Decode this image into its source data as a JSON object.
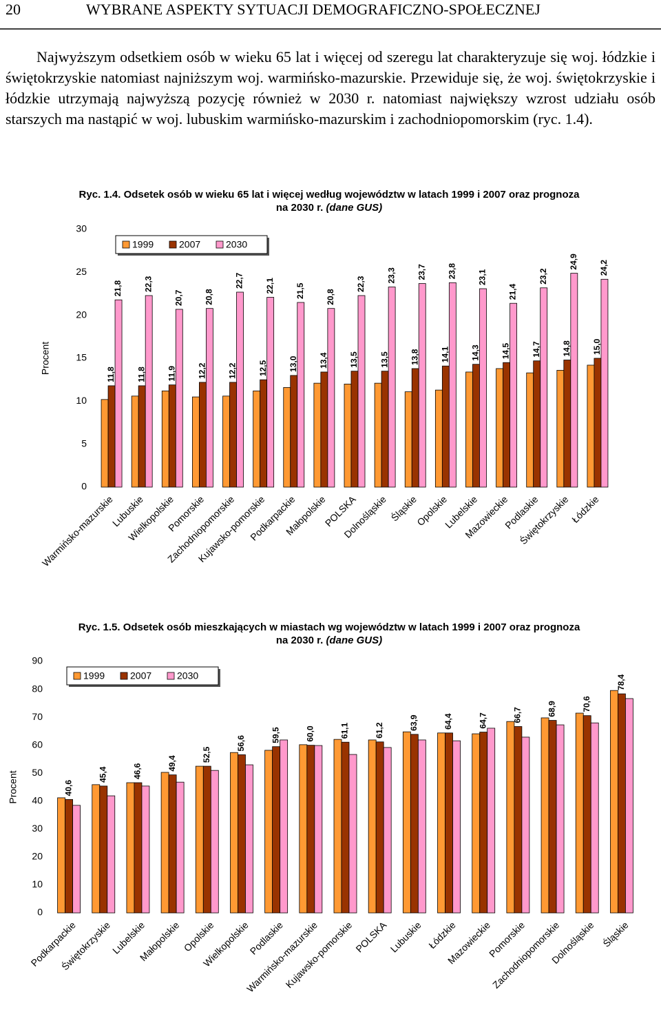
{
  "header": {
    "page_number": "20",
    "title": "WYBRANE ASPEKTY SYTUACJI DEMOGRAFICZNO-SPOŁECZNEJ"
  },
  "paragraph": "Najwyższym odsetkiem osób w wieku 65 lat i więcej od szeregu lat charakteryzuje się woj. łódzkie i świętokrzyskie natomiast najniższym woj. warmińsko-mazurskie. Przewiduje się, że woj. świętokrzyskie i łódzkie utrzymają najwyższą pozycję również w 2030 r. natomiast największy wzrost udziału osób starszych ma nastąpić w woj. lubuskim warmińsko-mazurskim i zachodniopomorskim (ryc. 1.4).",
  "chart_data": [
    {
      "type": "bar",
      "title": "Ryc. 1.4. Odsetek osób w wieku 65 lat i więcej według województw w latach 1999 i 2007 oraz prognoza na 2030 r.",
      "source": "(dane GUS)",
      "ylabel": "Procent",
      "categories": [
        "Warmińsko-mazurskie",
        "Lubuskie",
        "Wielkopolskie",
        "Pomorskie",
        "Zachodniopomorskie",
        "Kujawsko-pomorskie",
        "Podkarpackie",
        "Małopolskie",
        "POLSKA",
        "Dolnośląskie",
        "Śląskie",
        "Opolskie",
        "Lubelskie",
        "Mazowieckie",
        "Podlaskie",
        "Świętokrzyskie",
        "Łódzkie"
      ],
      "series": [
        {
          "name": "1999",
          "color": "#ff9933",
          "values": [
            10.2,
            10.6,
            11.2,
            10.5,
            10.6,
            11.2,
            11.6,
            12.1,
            12.0,
            12.1,
            11.1,
            11.3,
            13.4,
            13.8,
            13.3,
            13.6,
            14.2
          ]
        },
        {
          "name": "2007",
          "color": "#993300",
          "values": [
            11.8,
            11.8,
            11.9,
            12.2,
            12.2,
            12.5,
            13.0,
            13.4,
            13.5,
            13.5,
            13.8,
            14.1,
            14.3,
            14.5,
            14.7,
            14.8,
            15.0
          ],
          "value_labels": [
            "11,8",
            "11,8",
            "11,9",
            "12,2",
            "12,2",
            "12,5",
            "13,0",
            "13,4",
            "13,5",
            "13,5",
            "13,8",
            "14,1",
            "14,3",
            "14,5",
            "14,7",
            "14,8",
            "15,0"
          ]
        },
        {
          "name": "2030",
          "color": "#ff99cc",
          "values": [
            21.8,
            22.3,
            20.7,
            20.8,
            22.7,
            22.1,
            21.5,
            20.8,
            22.3,
            23.3,
            23.7,
            23.8,
            23.1,
            21.4,
            23.2,
            24.9,
            24.2
          ],
          "value_labels": [
            "21,8",
            "22,3",
            "20,7",
            "20,8",
            "22,7",
            "22,1",
            "21,5",
            "20,8",
            "22,3",
            "23,3",
            "23,7",
            "23,8",
            "23,1",
            "21,4",
            "23,2",
            "24,9",
            "24,2"
          ]
        }
      ],
      "ylim": [
        0,
        30
      ],
      "yticks": [
        0,
        5,
        10,
        15,
        20,
        25,
        30
      ],
      "legend": "top-left"
    },
    {
      "type": "bar",
      "title": "Ryc. 1.5. Odsetek osób mieszkających w miastach wg województw w latach 1999 i 2007 oraz prognoza na 2030 r.",
      "source": "(dane GUS)",
      "ylabel": "Procent",
      "categories": [
        "Podkarpackie",
        "Świętokrzyskie",
        "Lubelskie",
        "Małopolskie",
        "Opolskie",
        "Wielkopolskie",
        "Podlaskie",
        "Warmińsko-mazurskie",
        "Kujawsko-pomorskie",
        "POLSKA",
        "Lubuskie",
        "Łódzkie",
        "Mazowieckie",
        "Pomorskie",
        "Zachodniopomorskie",
        "Dolnośląskie",
        "Śląskie"
      ],
      "series": [
        {
          "name": "1999",
          "color": "#ff9933",
          "values": [
            41.2,
            45.9,
            46.6,
            50.3,
            52.5,
            57.4,
            58.2,
            60.2,
            62.1,
            61.9,
            64.8,
            64.4,
            64.1,
            68.5,
            69.8,
            71.5,
            79.6
          ]
        },
        {
          "name": "2007",
          "color": "#993300",
          "values": [
            40.6,
            45.4,
            46.6,
            49.4,
            52.5,
            56.6,
            59.5,
            60.0,
            61.1,
            61.2,
            63.9,
            64.4,
            64.7,
            66.7,
            68.9,
            70.6,
            78.4
          ],
          "value_labels": [
            "40,6",
            "45,4",
            "46,6",
            "49,4",
            "52,5",
            "56,6",
            "59,5",
            "60,0",
            "61,1",
            "61,2",
            "63,9",
            "64,4",
            "64,7",
            "66,7",
            "68,9",
            "70,6",
            "78,4"
          ]
        },
        {
          "name": "2030",
          "color": "#ff99cc",
          "values": [
            38.5,
            41.9,
            45.4,
            46.8,
            51.0,
            53.0,
            61.9,
            59.9,
            56.7,
            59.2,
            61.9,
            61.6,
            66.1,
            62.9,
            67.3,
            68.0,
            76.7
          ]
        }
      ],
      "ylim": [
        0,
        90
      ],
      "yticks": [
        0,
        10,
        20,
        30,
        40,
        50,
        60,
        70,
        80,
        90
      ],
      "legend": "top-left"
    }
  ]
}
